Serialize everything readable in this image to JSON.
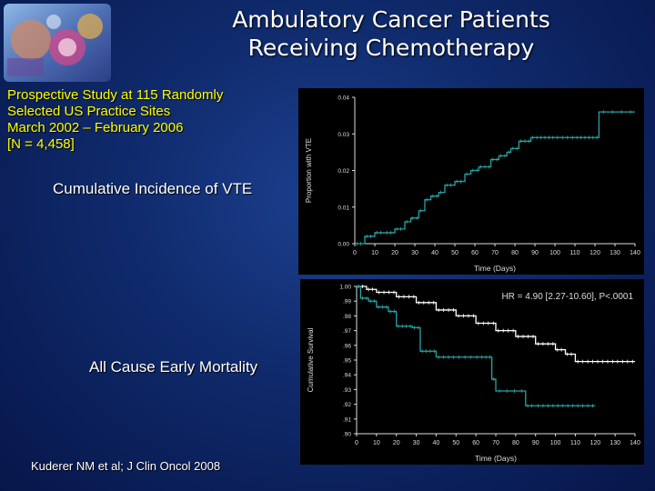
{
  "title": {
    "line1": "Ambulatory Cancer Patients",
    "line2": "Receiving Chemotherapy"
  },
  "study": {
    "lines": [
      "Prospective Study at 115 Randomly",
      "Selected US Practice Sites",
      "March 2002 – February 2006",
      "[N = 4,458]"
    ]
  },
  "labels": {
    "vte": "Cumulative Incidence of VTE",
    "mortality": "All Cause Early Mortality"
  },
  "citation": "Kuderer NM et al; J Clin Oncol 2008",
  "colors": {
    "background": "#0f2a6b",
    "title_text": "#ffffff",
    "study_text": "#ffff00",
    "curve_primary": "#2aa3a3",
    "curve_secondary": "#ffffff",
    "plot_bg": "#000000"
  },
  "chart_data": [
    {
      "type": "line",
      "xlabel": "Time (Days)",
      "ylabel": "Proportion with VTE",
      "xlim": [
        0,
        140
      ],
      "ylim": [
        0.0,
        0.04
      ],
      "x_ticks": [
        "0",
        "10",
        "20",
        "30",
        "40",
        "50",
        "60",
        "70",
        "80",
        "90",
        "100",
        "110",
        "120",
        "130",
        "140"
      ],
      "y_ticks": [
        "0.00",
        "0.01",
        "0.02",
        "0.03",
        "0.04"
      ],
      "series": [
        {
          "x": [
            0,
            5,
            10,
            15,
            20,
            25,
            28,
            32,
            35,
            38,
            42,
            45,
            50,
            55,
            58,
            62,
            68,
            72,
            76,
            78,
            82,
            88,
            92,
            100,
            110,
            118,
            122,
            140
          ],
          "y": [
            0.0,
            0.002,
            0.003,
            0.003,
            0.004,
            0.006,
            0.007,
            0.009,
            0.012,
            0.013,
            0.014,
            0.016,
            0.017,
            0.019,
            0.02,
            0.021,
            0.023,
            0.024,
            0.025,
            0.026,
            0.028,
            0.029,
            0.029,
            0.029,
            0.029,
            0.029,
            0.036,
            0.036
          ]
        }
      ]
    },
    {
      "type": "line",
      "xlabel": "Time (Days)",
      "ylabel": "Cumulative Survival",
      "xlim": [
        0,
        140
      ],
      "ylim": [
        0.9,
        1.0
      ],
      "x_ticks": [
        "0",
        "10",
        "20",
        "30",
        "40",
        "50",
        "60",
        "70",
        "80",
        "90",
        "100",
        "110",
        "120",
        "130",
        "140"
      ],
      "y_ticks": [
        ".90",
        ".91",
        ".92",
        ".93",
        ".94",
        ".95",
        ".96",
        ".97",
        ".98",
        ".99",
        "1.00"
      ],
      "annotation": "HR = 4.90 [2.27-10.60], P<.0001",
      "series": [
        {
          "x": [
            0,
            5,
            10,
            20,
            30,
            40,
            50,
            60,
            70,
            80,
            90,
            100,
            105,
            110,
            120,
            130,
            140
          ],
          "y": [
            1.0,
            0.998,
            0.996,
            0.993,
            0.989,
            0.984,
            0.98,
            0.975,
            0.97,
            0.966,
            0.961,
            0.957,
            0.954,
            0.949,
            0.949,
            0.949,
            0.949
          ]
        },
        {
          "x": [
            0,
            2,
            6,
            10,
            16,
            20,
            28,
            32,
            40,
            50,
            62,
            68,
            70,
            85,
            90,
            100,
            110,
            120
          ],
          "y": [
            1.0,
            0.992,
            0.99,
            0.986,
            0.983,
            0.973,
            0.972,
            0.956,
            0.952,
            0.952,
            0.952,
            0.937,
            0.929,
            0.919,
            0.919,
            0.919,
            0.919,
            0.919
          ]
        }
      ]
    }
  ]
}
